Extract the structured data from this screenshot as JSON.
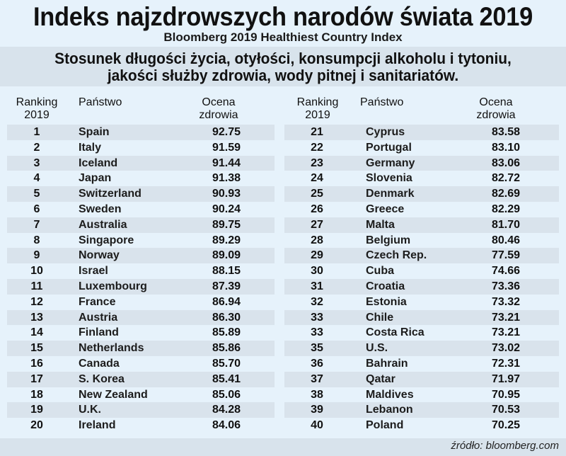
{
  "header": {
    "title": "Indeks najzdrowszych narodów świata 2019",
    "subtitle": "Bloomberg 2019 Healthiest Country Index",
    "description_line1": "Stosunek długości życia, otyłości, konsumpcji alkoholu i tytoniu,",
    "description_line2": "jakości służby zdrowia, wody pitnej i sanitariatów."
  },
  "columns": {
    "rank_line1": "Ranking",
    "rank_line2": "2019",
    "country": "Państwo",
    "score_line1": "Ocena",
    "score_line2": "zdrowia"
  },
  "footer": {
    "source": "źródło: bloomberg.com"
  },
  "colors": {
    "background": "#e6f2fb",
    "stripe": "#d9e3ec",
    "text": "#111111"
  },
  "chart_data": {
    "type": "table",
    "title": "Indeks najzdrowszych narodów świata 2019",
    "subtitle": "Bloomberg 2019 Healthiest Country Index",
    "columns": [
      "Ranking 2019",
      "Państwo",
      "Ocena zdrowia"
    ],
    "rows": [
      {
        "rank": "1",
        "country": "Spain",
        "score": "92.75"
      },
      {
        "rank": "2",
        "country": "Italy",
        "score": "91.59"
      },
      {
        "rank": "3",
        "country": "Iceland",
        "score": "91.44"
      },
      {
        "rank": "4",
        "country": "Japan",
        "score": "91.38"
      },
      {
        "rank": "5",
        "country": "Switzerland",
        "score": "90.93"
      },
      {
        "rank": "6",
        "country": "Sweden",
        "score": "90.24"
      },
      {
        "rank": "7",
        "country": "Australia",
        "score": "89.75"
      },
      {
        "rank": "8",
        "country": "Singapore",
        "score": "89.29"
      },
      {
        "rank": "9",
        "country": "Norway",
        "score": "89.09"
      },
      {
        "rank": "10",
        "country": "Israel",
        "score": "88.15"
      },
      {
        "rank": "11",
        "country": "Luxembourg",
        "score": "87.39"
      },
      {
        "rank": "12",
        "country": "France",
        "score": "86.94"
      },
      {
        "rank": "13",
        "country": "Austria",
        "score": "86.30"
      },
      {
        "rank": "14",
        "country": "Finland",
        "score": "85.89"
      },
      {
        "rank": "15",
        "country": "Netherlands",
        "score": "85.86"
      },
      {
        "rank": "16",
        "country": "Canada",
        "score": "85.70"
      },
      {
        "rank": "17",
        "country": "S. Korea",
        "score": "85.41"
      },
      {
        "rank": "18",
        "country": "New Zealand",
        "score": "85.06"
      },
      {
        "rank": "19",
        "country": "U.K.",
        "score": "84.28"
      },
      {
        "rank": "20",
        "country": "Ireland",
        "score": "84.06"
      },
      {
        "rank": "21",
        "country": "Cyprus",
        "score": "83.58"
      },
      {
        "rank": "22",
        "country": "Portugal",
        "score": "83.10"
      },
      {
        "rank": "23",
        "country": "Germany",
        "score": "83.06"
      },
      {
        "rank": "24",
        "country": "Slovenia",
        "score": "82.72"
      },
      {
        "rank": "25",
        "country": "Denmark",
        "score": "82.69"
      },
      {
        "rank": "26",
        "country": "Greece",
        "score": "82.29"
      },
      {
        "rank": "27",
        "country": "Malta",
        "score": "81.70"
      },
      {
        "rank": "28",
        "country": "Belgium",
        "score": "80.46"
      },
      {
        "rank": "29",
        "country": "Czech Rep.",
        "score": "77.59"
      },
      {
        "rank": "30",
        "country": "Cuba",
        "score": "74.66"
      },
      {
        "rank": "31",
        "country": "Croatia",
        "score": "73.36"
      },
      {
        "rank": "32",
        "country": "Estonia",
        "score": "73.32"
      },
      {
        "rank": "33",
        "country": "Chile",
        "score": "73.21"
      },
      {
        "rank": "33",
        "country": "Costa Rica",
        "score": "73.21"
      },
      {
        "rank": "35",
        "country": "U.S.",
        "score": "73.02"
      },
      {
        "rank": "36",
        "country": "Bahrain",
        "score": "72.31"
      },
      {
        "rank": "37",
        "country": "Qatar",
        "score": "71.97"
      },
      {
        "rank": "38",
        "country": "Maldives",
        "score": "70.95"
      },
      {
        "rank": "39",
        "country": "Lebanon",
        "score": "70.53"
      },
      {
        "rank": "40",
        "country": "Poland",
        "score": "70.25"
      }
    ]
  }
}
